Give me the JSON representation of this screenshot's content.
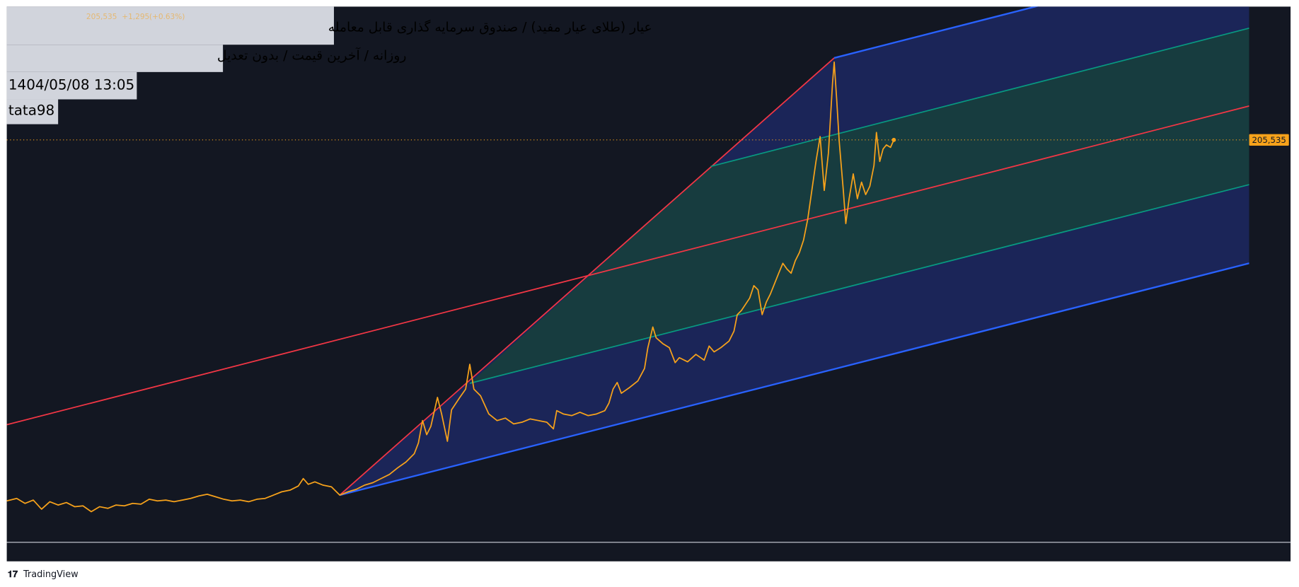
{
  "header": {
    "title": "عیار (طلای عیار مفید) / صندوق سرمایه گذاری قابل معامله",
    "subtitle": "روزانه / آخرین قیمت / بدون تعدیل",
    "datetime": "1404/05/08 13:05",
    "author": "tata98"
  },
  "ticker": {
    "last": "205,535",
    "change": "+1,295",
    "change_pct": "(+0.63%)"
  },
  "price_label": "205,535",
  "brand": "TradingView"
}
